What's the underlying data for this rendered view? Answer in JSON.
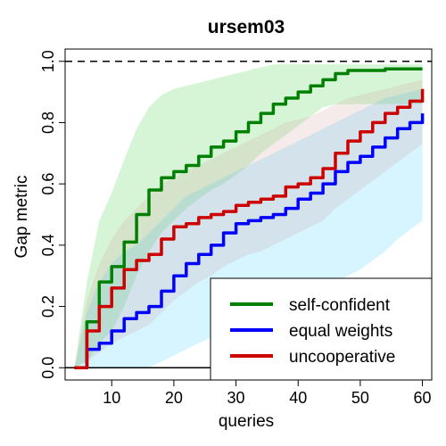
{
  "chart_data": {
    "type": "line",
    "title": "ursem03",
    "xlabel": "queries",
    "ylabel": "Gap metric",
    "xlim": [
      2.5,
      61.5
    ],
    "ylim": [
      -0.04,
      1.04
    ],
    "xticks": [
      10,
      20,
      30,
      40,
      50,
      60
    ],
    "yticks": [
      0.0,
      0.2,
      0.4,
      0.6,
      0.8,
      1.0
    ],
    "reference_lines": [
      {
        "y": 1.0,
        "style": "dashed"
      },
      {
        "y": 0.0,
        "style": "solid"
      }
    ],
    "legend_position": "bottom-right",
    "x": [
      4,
      6,
      8,
      10,
      12,
      14,
      16,
      18,
      20,
      22,
      24,
      26,
      28,
      30,
      32,
      34,
      36,
      38,
      40,
      42,
      44,
      46,
      48,
      50,
      52,
      54,
      56,
      58,
      60
    ],
    "series": [
      {
        "name": "self-confident",
        "color": "#008000",
        "band_color": "#33cc33",
        "values": [
          0.0,
          0.15,
          0.28,
          0.33,
          0.41,
          0.5,
          0.58,
          0.62,
          0.64,
          0.66,
          0.69,
          0.72,
          0.74,
          0.77,
          0.8,
          0.83,
          0.86,
          0.88,
          0.9,
          0.92,
          0.94,
          0.96,
          0.97,
          0.97,
          0.97,
          0.975,
          0.975,
          0.975,
          0.975
        ],
        "lower": [
          0.0,
          0.02,
          0.08,
          0.12,
          0.2,
          0.3,
          0.38,
          0.44,
          0.48,
          0.52,
          0.55,
          0.58,
          0.6,
          0.63,
          0.66,
          0.7,
          0.73,
          0.76,
          0.79,
          0.82,
          0.85,
          0.86,
          0.86,
          0.86,
          0.86,
          0.86,
          0.86,
          0.86,
          0.86
        ],
        "upper": [
          0.0,
          0.28,
          0.48,
          0.57,
          0.68,
          0.78,
          0.85,
          0.89,
          0.91,
          0.92,
          0.93,
          0.94,
          0.95,
          0.96,
          0.97,
          0.98,
          0.99,
          0.99,
          0.99,
          0.99,
          0.99,
          0.99,
          0.99,
          0.99,
          0.99,
          0.99,
          0.99,
          0.99,
          0.99
        ]
      },
      {
        "name": "equal weights",
        "color": "#0000ff",
        "band_color": "#33ccff",
        "values": [
          0.0,
          0.06,
          0.08,
          0.12,
          0.16,
          0.18,
          0.2,
          0.25,
          0.3,
          0.34,
          0.37,
          0.4,
          0.44,
          0.47,
          0.48,
          0.49,
          0.5,
          0.52,
          0.55,
          0.57,
          0.6,
          0.64,
          0.67,
          0.69,
          0.72,
          0.75,
          0.78,
          0.8,
          0.83
        ],
        "lower": [
          0.0,
          0.0,
          0.0,
          0.0,
          0.0,
          0.0,
          0.0,
          0.02,
          0.04,
          0.06,
          0.08,
          0.1,
          0.12,
          0.14,
          0.15,
          0.16,
          0.17,
          0.18,
          0.2,
          0.22,
          0.25,
          0.28,
          0.3,
          0.32,
          0.35,
          0.38,
          0.42,
          0.45,
          0.48
        ],
        "upper": [
          0.0,
          0.18,
          0.28,
          0.34,
          0.38,
          0.4,
          0.44,
          0.48,
          0.52,
          0.56,
          0.58,
          0.6,
          0.62,
          0.64,
          0.66,
          0.68,
          0.7,
          0.72,
          0.74,
          0.76,
          0.78,
          0.8,
          0.82,
          0.84,
          0.86,
          0.88,
          0.89,
          0.9,
          0.91
        ]
      },
      {
        "name": "uncooperative",
        "color": "#cc0000",
        "band_color": "#cc9999",
        "values": [
          0.0,
          0.12,
          0.2,
          0.26,
          0.32,
          0.35,
          0.37,
          0.42,
          0.46,
          0.47,
          0.49,
          0.5,
          0.51,
          0.53,
          0.54,
          0.55,
          0.56,
          0.59,
          0.6,
          0.62,
          0.65,
          0.7,
          0.74,
          0.77,
          0.8,
          0.83,
          0.85,
          0.87,
          0.91
        ],
        "lower": [
          0.0,
          0.02,
          0.05,
          0.08,
          0.1,
          0.12,
          0.14,
          0.18,
          0.22,
          0.25,
          0.28,
          0.3,
          0.33,
          0.35,
          0.37,
          0.38,
          0.4,
          0.42,
          0.44,
          0.46,
          0.48,
          0.52,
          0.55,
          0.58,
          0.61,
          0.64,
          0.67,
          0.7,
          0.73
        ],
        "upper": [
          0.0,
          0.22,
          0.34,
          0.42,
          0.48,
          0.52,
          0.56,
          0.6,
          0.62,
          0.64,
          0.66,
          0.68,
          0.7,
          0.72,
          0.74,
          0.76,
          0.78,
          0.8,
          0.81,
          0.82,
          0.84,
          0.86,
          0.88,
          0.89,
          0.9,
          0.91,
          0.92,
          0.93,
          0.94
        ]
      }
    ]
  }
}
